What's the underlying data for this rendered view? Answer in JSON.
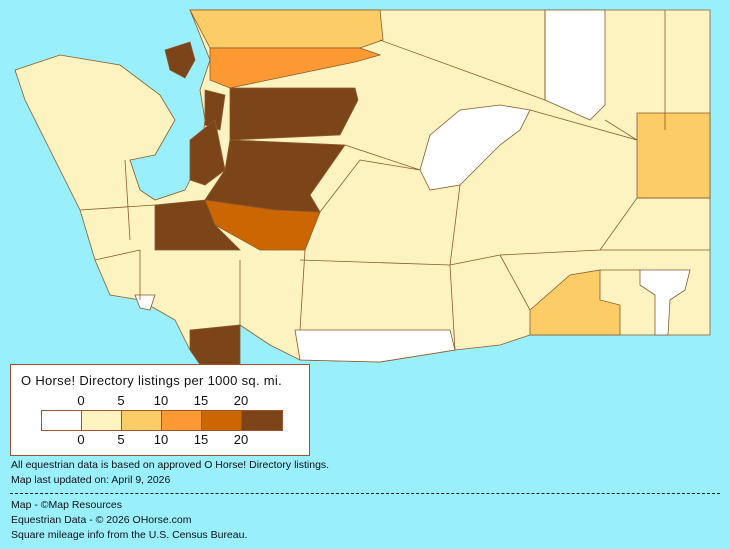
{
  "legend": {
    "title": "O Horse! Directory listings per 1000 sq. mi.",
    "ticks": [
      "0",
      "5",
      "10",
      "15",
      "20"
    ],
    "classes": [
      {
        "range": "0",
        "color": "#ffffff"
      },
      {
        "range": "0-5",
        "color": "#fdf3c0"
      },
      {
        "range": "5-10",
        "color": "#fccc66"
      },
      {
        "range": "10-15",
        "color": "#fc9933"
      },
      {
        "range": "15-20",
        "color": "#cc6600"
      },
      {
        "range": "20+",
        "color": "#7b4519"
      }
    ]
  },
  "notes": {
    "data_basis": "All equestrian data is based on approved O Horse! Directory listings.",
    "updated": "Map last updated on: April 9, 2026"
  },
  "credits": {
    "map": "Map - ©Map Resources",
    "data": "Equestrian Data - © 2026 OHorse.com",
    "census": "Square mileage info from the U.S. Census Bureau."
  },
  "colors": {
    "water": "#99f0fc",
    "border": "#8b5a2b"
  }
}
